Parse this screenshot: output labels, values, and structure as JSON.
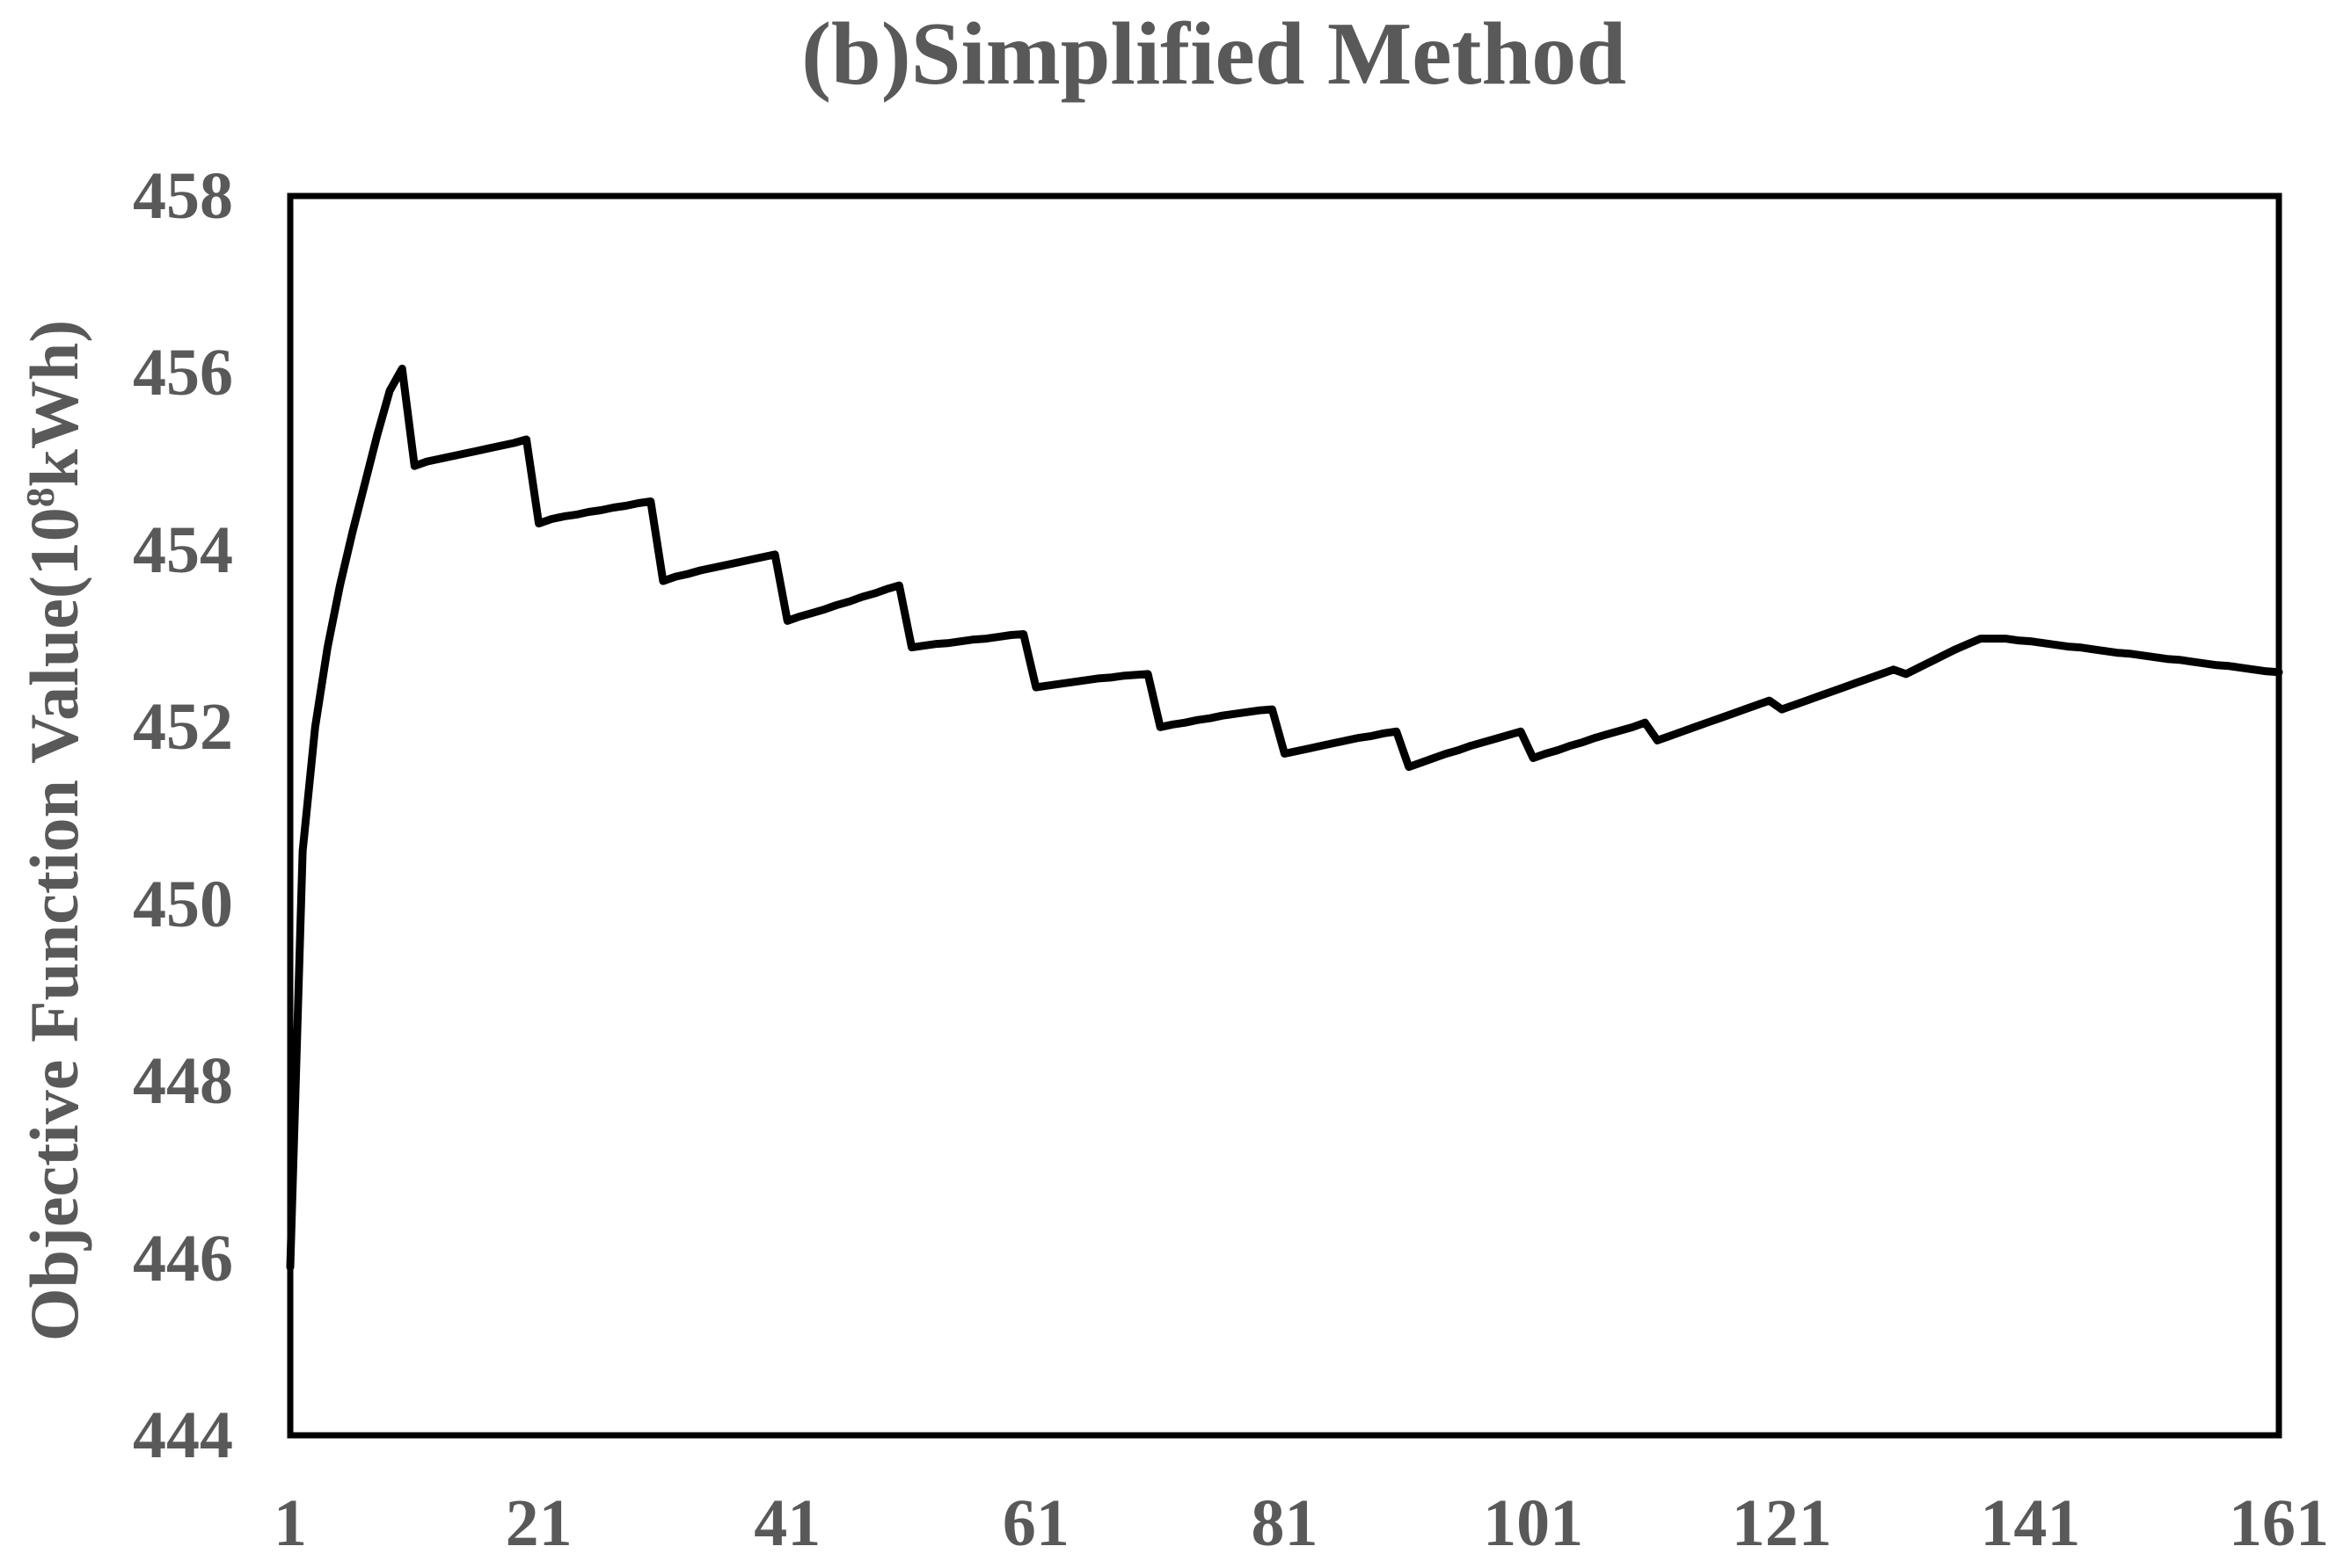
{
  "title": "(b)Simplified Method",
  "y_axis": {
    "label_prefix": "Objective Function Value(10",
    "label_sup": "8",
    "label_suffix": "kWh)",
    "ticks": [
      458,
      456,
      454,
      452,
      450,
      448,
      446,
      444
    ],
    "min": 444,
    "max": 458
  },
  "x_axis": {
    "ticks": [
      1,
      21,
      41,
      61,
      81,
      101,
      121,
      141,
      161
    ],
    "min": 1,
    "max": 161
  },
  "colors": {
    "line": "#000000",
    "axis": "#000000",
    "label": "#595959",
    "background": "#ffffff"
  },
  "chart_data": {
    "type": "line",
    "title": "(b)Simplified Method",
    "xlabel": "",
    "ylabel": "Objective Function Value(10^8 kWh)",
    "x_range": [
      1,
      161
    ],
    "x_step": 1,
    "y_range": [
      444,
      458
    ],
    "grid": false,
    "legend": "none",
    "series": [
      {
        "name": "Objective Function Value",
        "values": [
          445.9,
          450.6,
          452.0,
          452.9,
          453.6,
          454.2,
          454.75,
          455.3,
          455.8,
          456.05,
          454.95,
          455.0,
          455.03,
          455.06,
          455.09,
          455.12,
          455.15,
          455.18,
          455.21,
          455.25,
          454.3,
          454.35,
          454.38,
          454.4,
          454.43,
          454.45,
          454.48,
          454.5,
          454.53,
          454.55,
          453.65,
          453.7,
          453.73,
          453.77,
          453.8,
          453.83,
          453.86,
          453.89,
          453.92,
          453.95,
          453.2,
          453.25,
          453.29,
          453.33,
          453.38,
          453.42,
          453.47,
          453.51,
          453.56,
          453.6,
          452.9,
          452.92,
          452.94,
          452.95,
          452.97,
          452.99,
          453.0,
          453.02,
          453.04,
          453.05,
          452.45,
          452.47,
          452.49,
          452.51,
          452.53,
          452.55,
          452.56,
          452.58,
          452.59,
          452.6,
          452.0,
          452.03,
          452.05,
          452.08,
          452.1,
          452.13,
          452.15,
          452.17,
          452.19,
          452.2,
          451.7,
          451.73,
          451.76,
          451.79,
          451.82,
          451.85,
          451.88,
          451.9,
          451.93,
          451.95,
          451.55,
          451.6,
          451.65,
          451.7,
          451.74,
          451.79,
          451.83,
          451.87,
          451.91,
          451.95,
          451.65,
          451.7,
          451.74,
          451.79,
          451.83,
          451.88,
          451.92,
          451.96,
          452.0,
          452.05,
          451.85,
          451.9,
          451.95,
          452.0,
          452.05,
          452.1,
          452.15,
          452.2,
          452.25,
          452.3,
          452.2,
          452.25,
          452.3,
          452.35,
          452.4,
          452.45,
          452.5,
          452.55,
          452.6,
          452.65,
          452.6,
          452.67,
          452.74,
          452.81,
          452.88,
          452.94,
          453.0,
          453.0,
          453.0,
          452.98,
          452.97,
          452.95,
          452.93,
          452.91,
          452.9,
          452.88,
          452.86,
          452.84,
          452.83,
          452.81,
          452.79,
          452.77,
          452.76,
          452.74,
          452.72,
          452.7,
          452.69,
          452.67,
          452.65,
          452.63,
          452.62
        ]
      }
    ]
  }
}
